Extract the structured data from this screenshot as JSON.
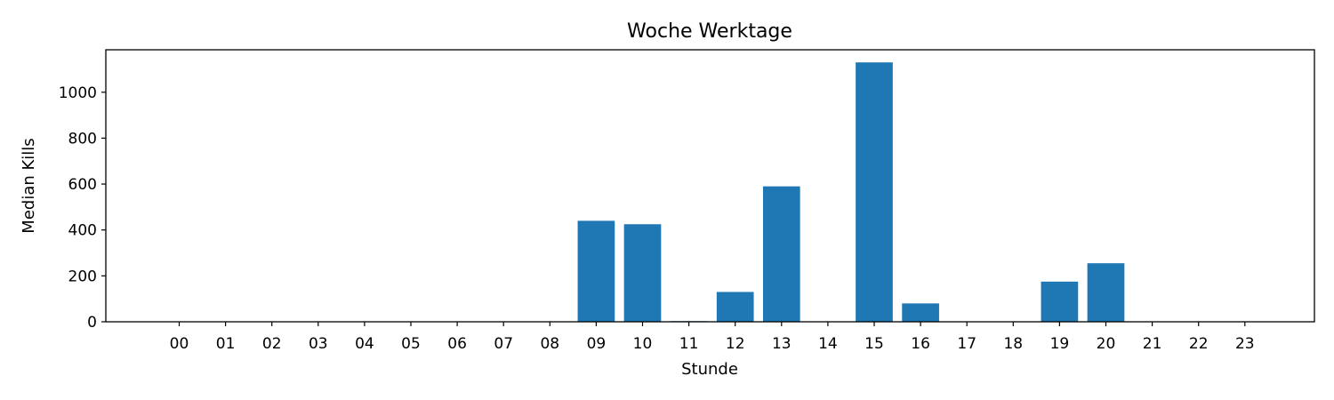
{
  "chart_data": {
    "type": "bar",
    "title": "Woche Werktage",
    "xlabel": "Stunde",
    "ylabel": "Median Kills",
    "categories": [
      "00",
      "01",
      "02",
      "03",
      "04",
      "05",
      "06",
      "07",
      "08",
      "09",
      "10",
      "11",
      "12",
      "13",
      "14",
      "15",
      "16",
      "17",
      "18",
      "19",
      "20",
      "21",
      "22",
      "23"
    ],
    "values": [
      0,
      0,
      0,
      0,
      0,
      0,
      0,
      0,
      0,
      440,
      425,
      3,
      130,
      590,
      0,
      1130,
      80,
      0,
      0,
      175,
      255,
      0,
      0,
      0
    ],
    "ylim": [
      0,
      1185
    ],
    "yticks": [
      0,
      200,
      400,
      600,
      800,
      1000
    ],
    "grid": false,
    "legend": "none",
    "bar_color": "#1f77b4"
  }
}
